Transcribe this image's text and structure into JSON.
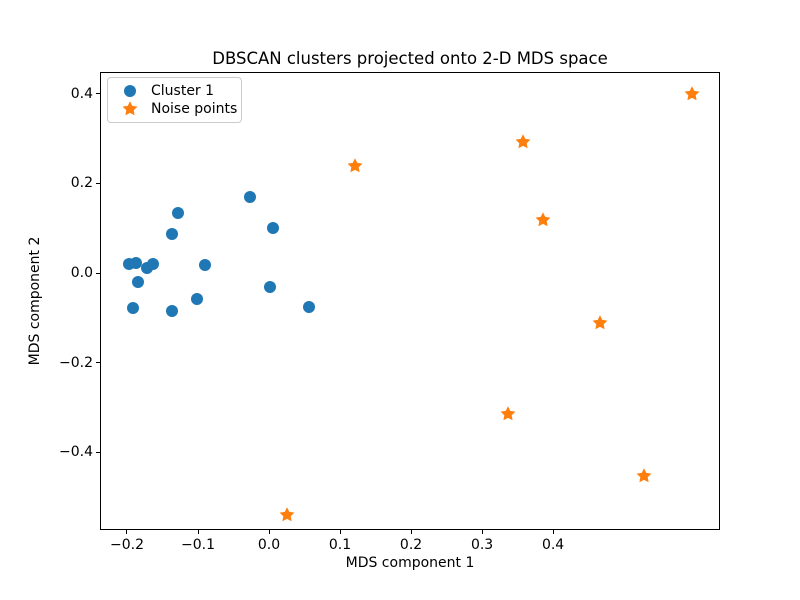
{
  "figure": {
    "background_color": "#ffffff"
  },
  "chart_data": {
    "type": "scatter",
    "title": "DBSCAN clusters projected onto 2-D MDS space",
    "xlabel": "MDS component 1",
    "ylabel": "MDS component 2",
    "xlim": [
      -0.238,
      0.635
    ],
    "ylim": [
      -0.574,
      0.449
    ],
    "x_ticks": [
      -0.2,
      -0.1,
      0.0,
      0.1,
      0.2,
      0.3,
      0.4
    ],
    "x_tick_labels": [
      "−0.2",
      "−0.1",
      "0.0",
      "0.1",
      "0.2",
      "0.3",
      "0.4"
    ],
    "y_ticks": [
      0.4,
      0.2,
      0.0,
      -0.2,
      -0.4
    ],
    "y_tick_labels": [
      "0.4",
      "0.2",
      "0.0",
      "−0.2",
      "−0.4"
    ],
    "grid": false,
    "legend": {
      "location": "upper left",
      "entries": [
        "Cluster 1",
        "Noise points"
      ]
    },
    "series": [
      {
        "name": "Cluster 1",
        "marker": "circle",
        "color": "#1f77b4",
        "points": [
          [
            -0.197,
            0.021
          ],
          [
            -0.187,
            0.023
          ],
          [
            -0.172,
            0.012
          ],
          [
            -0.163,
            0.021
          ],
          [
            -0.184,
            -0.021
          ],
          [
            -0.191,
            -0.079
          ],
          [
            -0.137,
            -0.084
          ],
          [
            -0.137,
            0.087
          ],
          [
            -0.128,
            0.133
          ],
          [
            -0.102,
            -0.057
          ],
          [
            -0.09,
            0.018
          ],
          [
            -0.027,
            0.169
          ],
          [
            0.006,
            0.1
          ],
          [
            0.001,
            -0.031
          ],
          [
            0.056,
            -0.077
          ]
        ]
      },
      {
        "name": "Noise points",
        "marker": "star",
        "color": "#ff7f0e",
        "points": [
          [
            0.121,
            0.24
          ],
          [
            0.358,
            0.293
          ],
          [
            0.596,
            0.4
          ],
          [
            0.386,
            0.118
          ],
          [
            0.466,
            -0.112
          ],
          [
            0.337,
            -0.315
          ],
          [
            0.528,
            -0.453
          ],
          [
            0.025,
            -0.54
          ]
        ]
      }
    ]
  }
}
